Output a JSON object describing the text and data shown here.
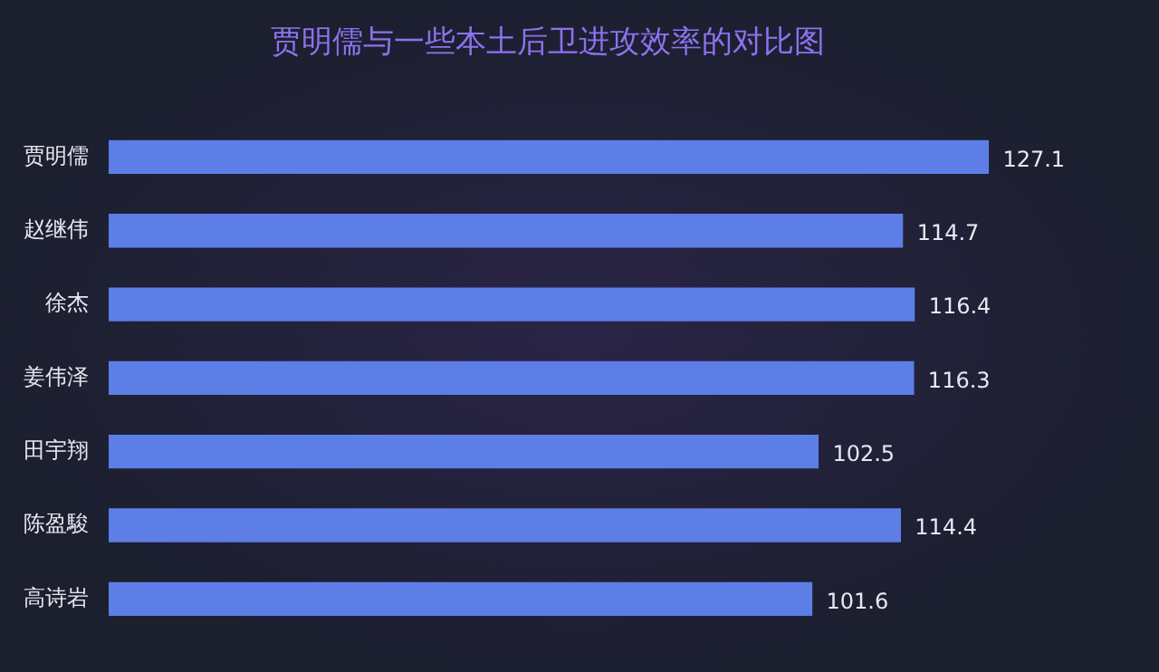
{
  "chart_data": {
    "type": "bar",
    "orientation": "horizontal",
    "title": "贾明儒与一些本土后卫进攻效率的对比图",
    "categories": [
      "贾明儒",
      "赵继伟",
      "徐杰",
      "姜伟泽",
      "田宇翔",
      "陈盈駿",
      "高诗岩"
    ],
    "values": [
      127.1,
      114.7,
      116.4,
      116.3,
      102.5,
      114.4,
      101.6
    ],
    "color": "#5c7ee6",
    "data_labels": true,
    "grid": false,
    "legend": false,
    "tick_labels": "y"
  }
}
